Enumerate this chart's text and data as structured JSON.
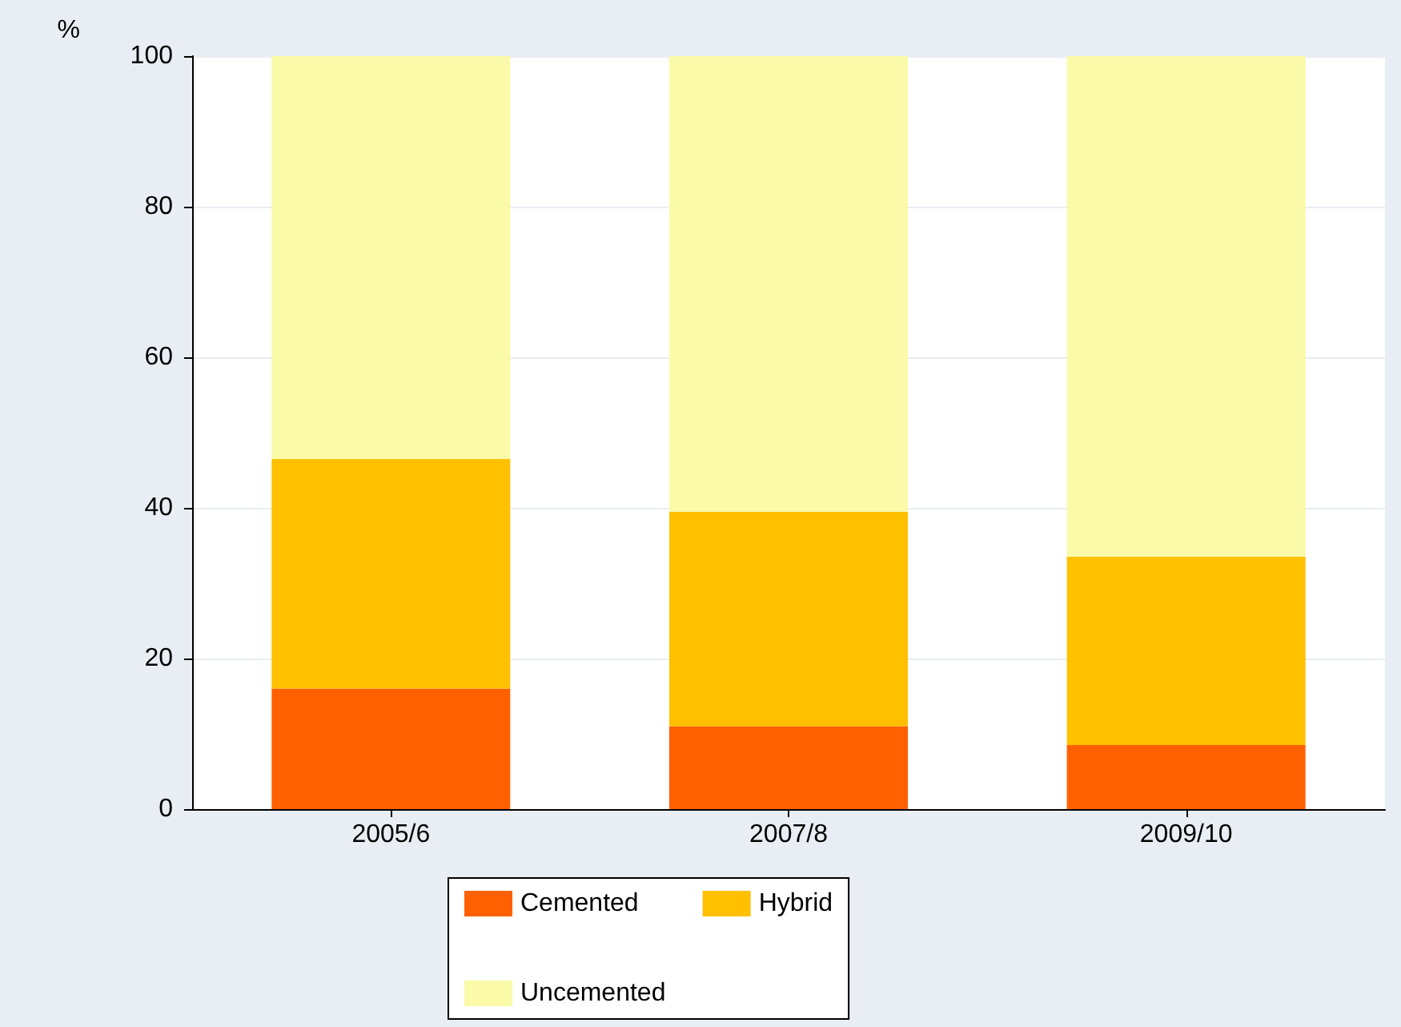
{
  "chart_data": {
    "type": "bar",
    "stacked": true,
    "ylabel": "%",
    "categories": [
      "2005/6",
      "2007/8",
      "2009/10"
    ],
    "series": [
      {
        "name": "Cemented",
        "color": "#ff6000",
        "values": [
          16,
          11,
          8.5
        ]
      },
      {
        "name": "Hybrid",
        "color": "#ffc000",
        "values": [
          30.5,
          28.5,
          25
        ]
      },
      {
        "name": "Uncemented",
        "color": "#fafaa8",
        "values": [
          53.5,
          60.5,
          66.5
        ]
      }
    ],
    "ylim": [
      0,
      100
    ],
    "yticks": [
      0,
      20,
      40,
      60,
      80,
      100
    ],
    "grid": "y",
    "legend": "bottom"
  }
}
